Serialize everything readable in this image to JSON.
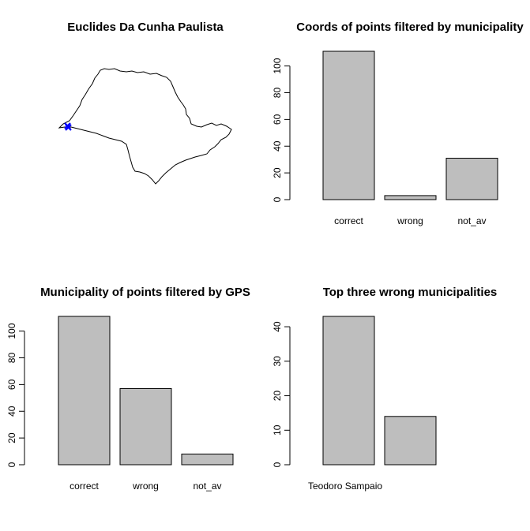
{
  "map_panel": {
    "title": "Euclides Da Cunha Paulista",
    "state_outline_color": "#000000",
    "marker_color": "#0000ff",
    "marker_icon": "x-marker"
  },
  "bar_fill_color": "#bebebe",
  "chart_data": [
    {
      "type": "bar",
      "title": "Coords of points filtered by municipality",
      "categories": [
        "correct",
        "wrong",
        "not_av"
      ],
      "values": [
        111,
        3,
        31
      ],
      "ylim": [
        0,
        111
      ],
      "yticks": [
        0,
        20,
        40,
        60,
        80,
        100
      ],
      "xlabel": "",
      "ylabel": ""
    },
    {
      "type": "bar",
      "title": "Municipality of points filtered by GPS",
      "categories": [
        "correct",
        "wrong",
        "not_av"
      ],
      "values": [
        111,
        57,
        8
      ],
      "ylim": [
        0,
        111
      ],
      "yticks": [
        0,
        20,
        40,
        60,
        80,
        100
      ],
      "xlabel": "",
      "ylabel": ""
    },
    {
      "type": "bar",
      "title": "Top three wrong municipalities",
      "categories": [
        "Teodoro Sampaio",
        ""
      ],
      "values": [
        43,
        14
      ],
      "ylim": [
        0,
        43
      ],
      "yticks": [
        0,
        10,
        20,
        30,
        40
      ],
      "xlabel": "",
      "ylabel": ""
    }
  ]
}
